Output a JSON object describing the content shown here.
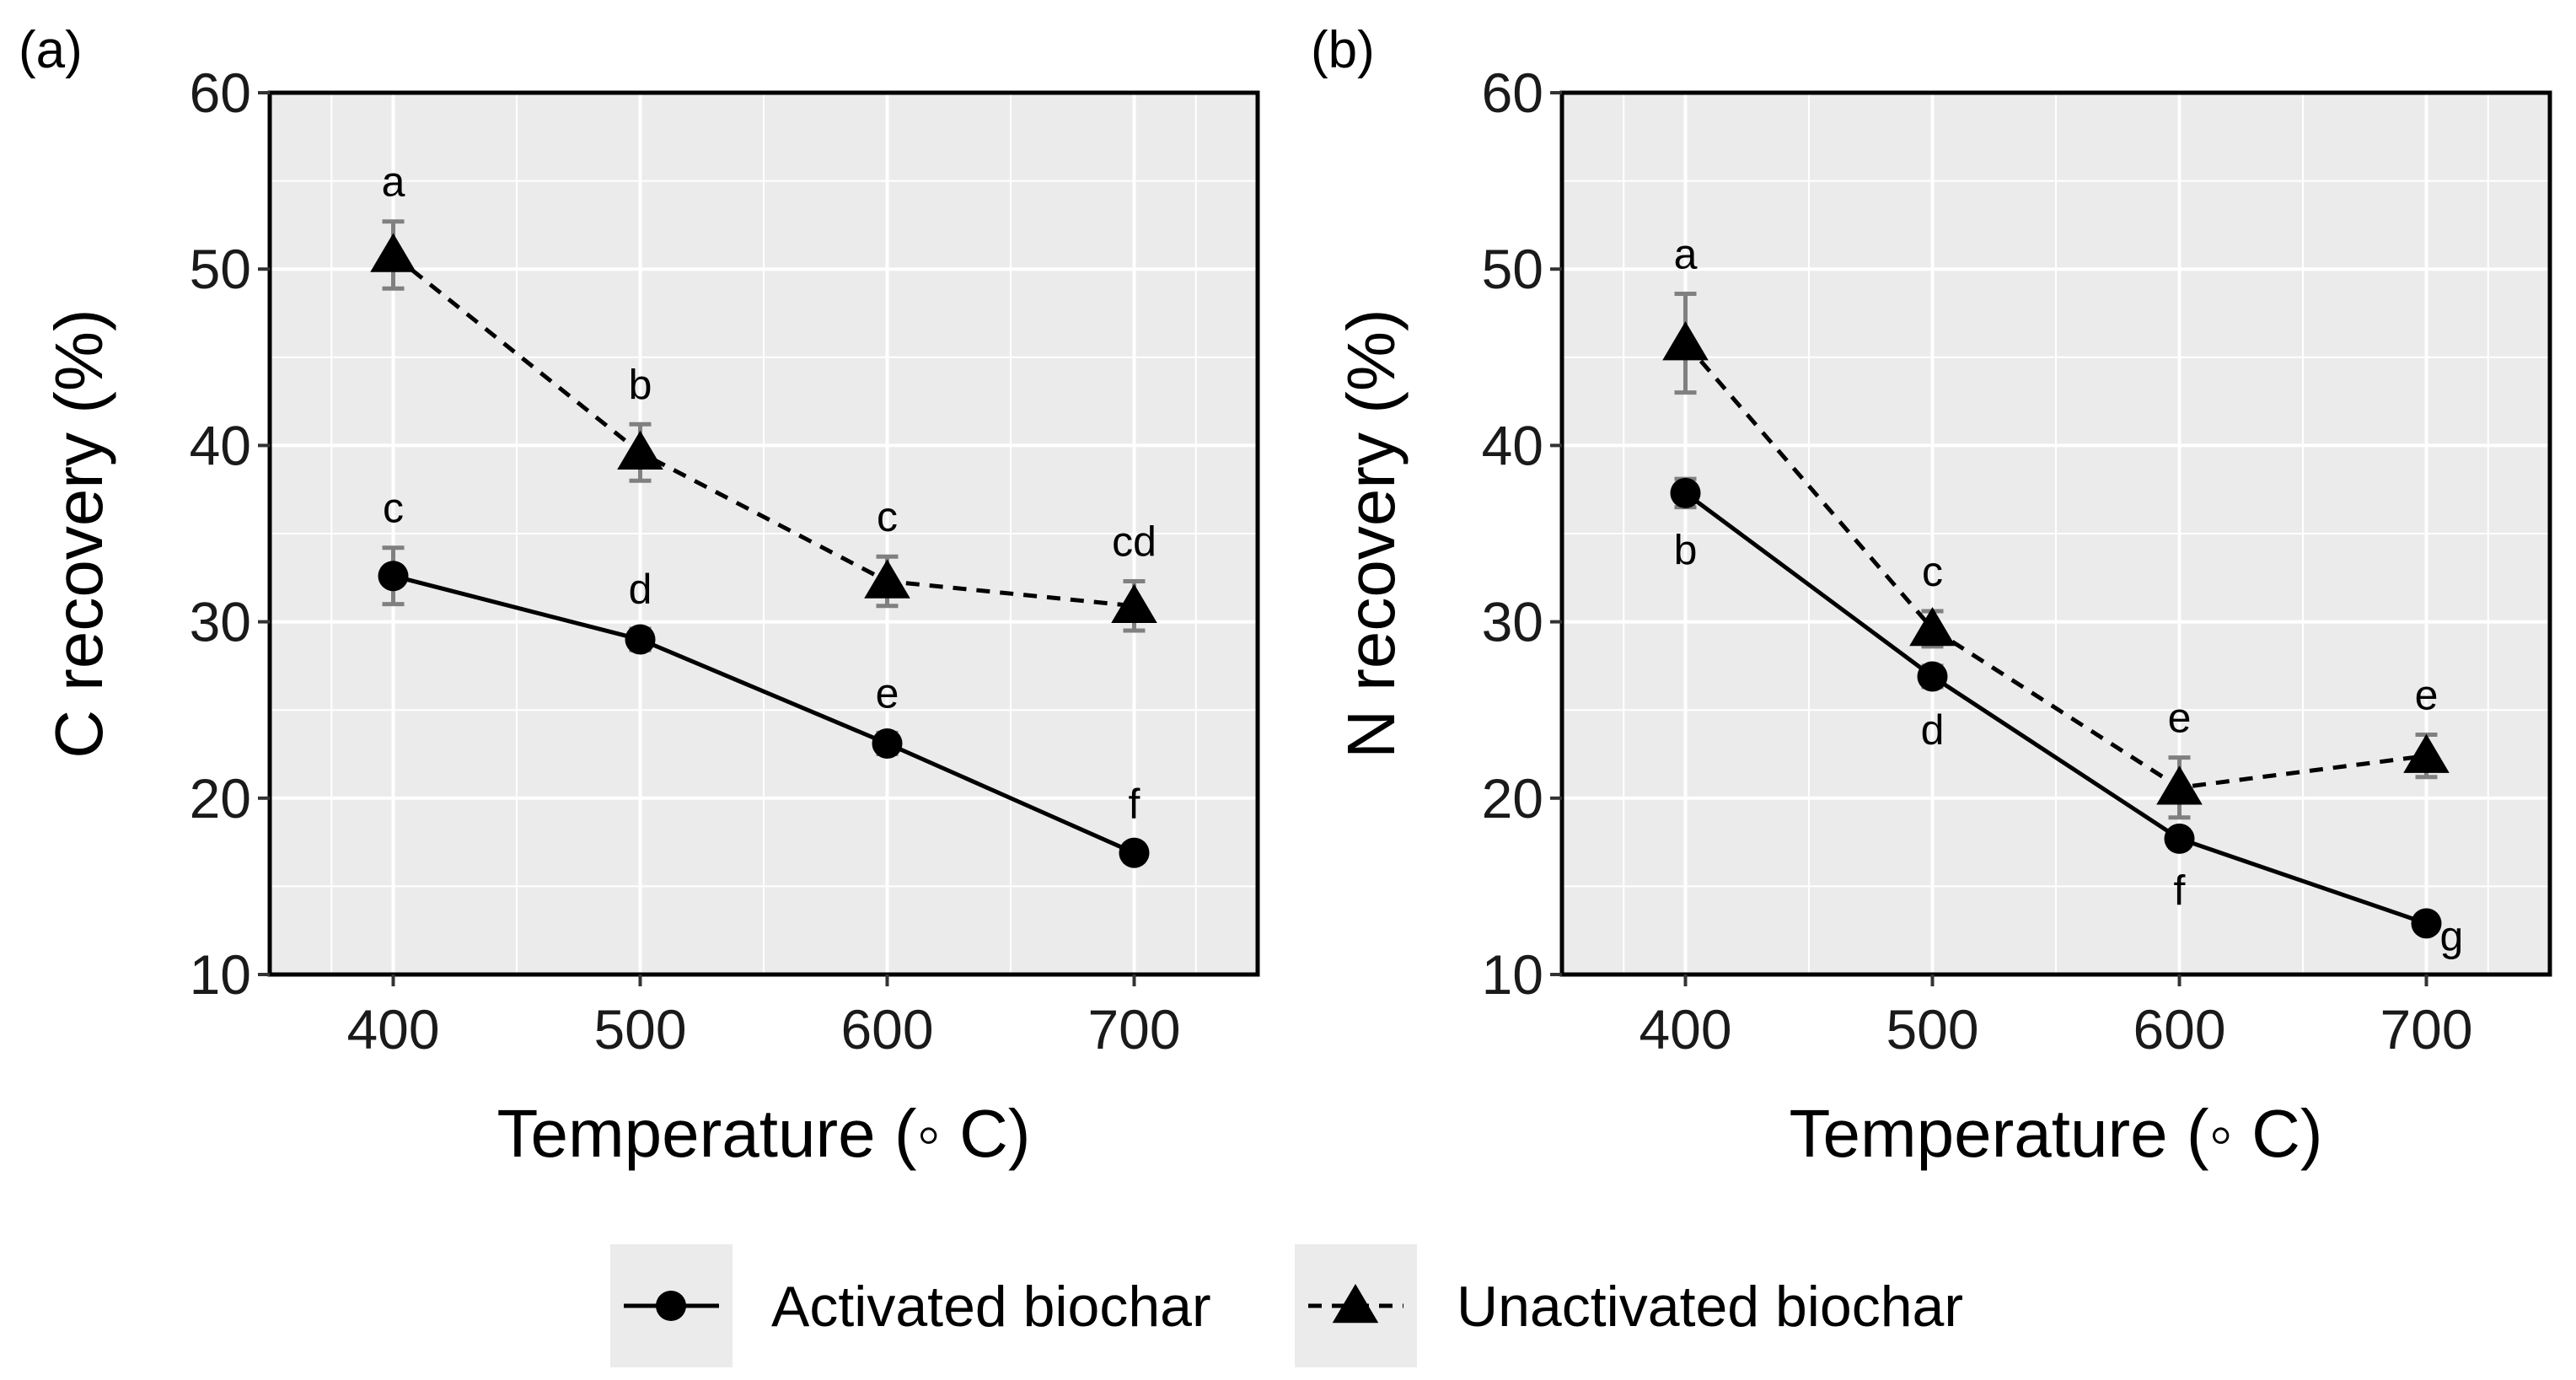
{
  "chart_data": [
    {
      "type": "line",
      "panel_label": "(a)",
      "xlabel": "Temperature (◦ C)",
      "ylabel": "C recovery (%)",
      "x": [
        400,
        500,
        600,
        700
      ],
      "xlim": [
        350,
        750
      ],
      "ylim": [
        10,
        60
      ],
      "x_ticks": [
        "400",
        "500",
        "600",
        "700"
      ],
      "y_ticks": [
        "10",
        "20",
        "30",
        "40",
        "50",
        "60"
      ],
      "grid": true,
      "series": [
        {
          "name": "Activated biochar",
          "values": [
            32.6,
            29.0,
            23.1,
            16.9
          ],
          "error": [
            1.6,
            0.6,
            0.6,
            0.5
          ],
          "labels": [
            "c",
            "d",
            "e",
            "f"
          ],
          "label_pos": [
            "above",
            "above",
            "above",
            "above"
          ]
        },
        {
          "name": "Unactivated biochar",
          "values": [
            50.8,
            39.6,
            32.3,
            30.9
          ],
          "error": [
            1.9,
            1.6,
            1.4,
            1.4
          ],
          "labels": [
            "a",
            "b",
            "c",
            "cd"
          ],
          "label_pos": [
            "above",
            "above",
            "above",
            "above"
          ]
        }
      ]
    },
    {
      "type": "line",
      "panel_label": "(b)",
      "xlabel": "Temperature (◦ C)",
      "ylabel": "N recovery (%)",
      "x": [
        400,
        500,
        600,
        700
      ],
      "xlim": [
        350,
        750
      ],
      "ylim": [
        10,
        60
      ],
      "x_ticks": [
        "400",
        "500",
        "600",
        "700"
      ],
      "y_ticks": [
        "10",
        "20",
        "30",
        "40",
        "50",
        "60"
      ],
      "grid": true,
      "series": [
        {
          "name": "Activated biochar",
          "values": [
            37.3,
            26.9,
            17.7,
            12.9
          ],
          "error": [
            0.8,
            0.6,
            0.5,
            0.4
          ],
          "labels": [
            "b",
            "d",
            "f",
            "g"
          ],
          "label_pos": [
            "below",
            "below",
            "below",
            "right"
          ]
        },
        {
          "name": "Unactivated biochar",
          "values": [
            45.8,
            29.6,
            20.6,
            22.4
          ],
          "error": [
            2.8,
            1.0,
            1.7,
            1.2
          ],
          "labels": [
            "a",
            "c",
            "e",
            "e"
          ],
          "label_pos": [
            "above",
            "above",
            "above",
            "above"
          ]
        }
      ]
    }
  ],
  "legend": {
    "items": [
      {
        "name": "Activated biochar",
        "marker": "circle",
        "line": "solid"
      },
      {
        "name": "Unactivated biochar",
        "marker": "triangle",
        "line": "dashed"
      }
    ],
    "position": "bottom-center"
  },
  "colors": {
    "panel_bg": "#ebebeb",
    "grid": "#ffffff",
    "line": "#000000",
    "error": "#808080",
    "legend_key_bg": "#ebebeb"
  }
}
